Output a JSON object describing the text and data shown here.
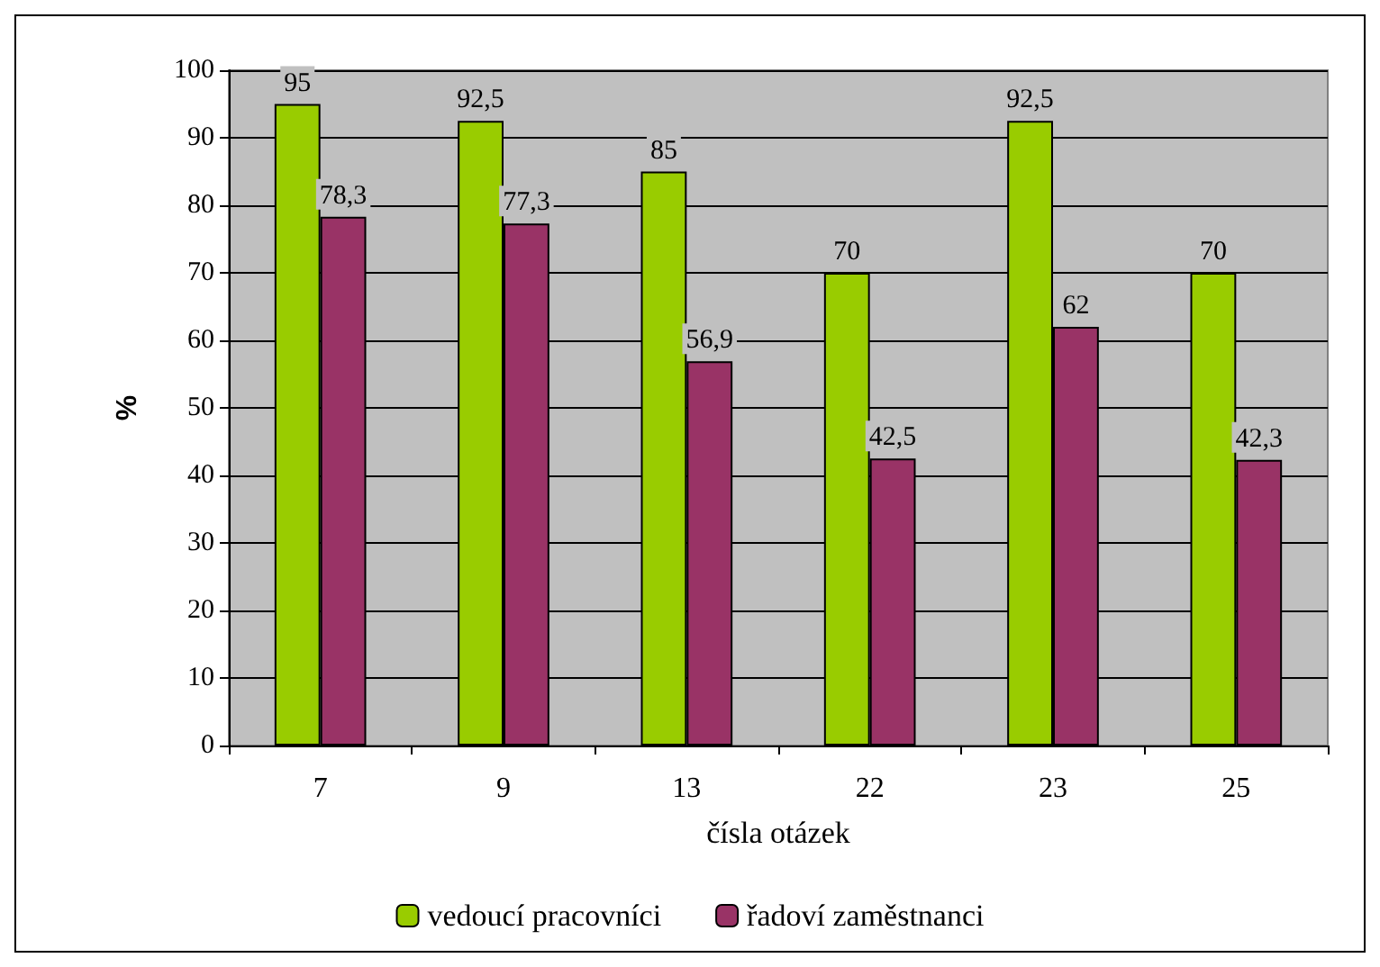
{
  "chart_data": {
    "type": "bar",
    "xlabel": "čísla otázek",
    "ylabel": "%",
    "categories": [
      "7",
      "9",
      "13",
      "22",
      "23",
      "25"
    ],
    "series": [
      {
        "name": "vedoucí pracovníci",
        "color": "#99cc00",
        "values": [
          95,
          92.5,
          85,
          70,
          92.5,
          70
        ],
        "value_labels": [
          "95",
          "92,5",
          "85",
          "70",
          "92,5",
          "70"
        ]
      },
      {
        "name": "řadoví zaměstnanci",
        "color": "#993366",
        "values": [
          78.3,
          77.3,
          56.9,
          42.5,
          62,
          42.3
        ],
        "value_labels": [
          "78,3",
          "77,3",
          "56,9",
          "42,5",
          "62",
          "42,3"
        ]
      }
    ],
    "ylim": [
      0,
      100
    ],
    "yticks": [
      0,
      10,
      20,
      30,
      40,
      50,
      60,
      70,
      80,
      90,
      100
    ],
    "grid": "y",
    "legend": "bottom"
  }
}
